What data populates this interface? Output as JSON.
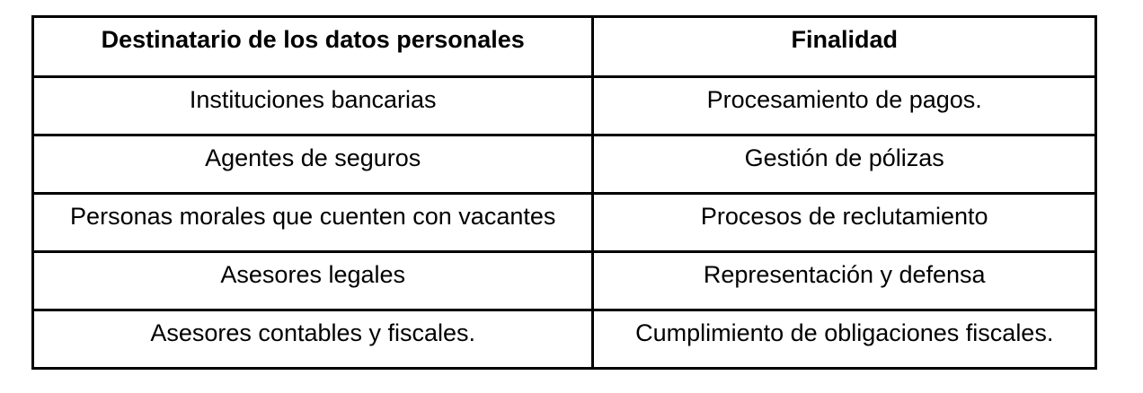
{
  "table": {
    "headers": [
      "Destinatario de los datos personales",
      "Finalidad"
    ],
    "rows": [
      [
        "Instituciones bancarias",
        "Procesamiento de pagos."
      ],
      [
        "Agentes de seguros",
        "Gestión de pólizas"
      ],
      [
        "Personas morales que cuenten con vacantes",
        "Procesos de reclutamiento"
      ],
      [
        "Asesores legales",
        "Representación y defensa"
      ],
      [
        "Asesores contables y fiscales.",
        "Cumplimiento de obligaciones fiscales."
      ]
    ],
    "colors": {
      "border": "#000000",
      "text": "#000000",
      "background": "#ffffff"
    }
  }
}
